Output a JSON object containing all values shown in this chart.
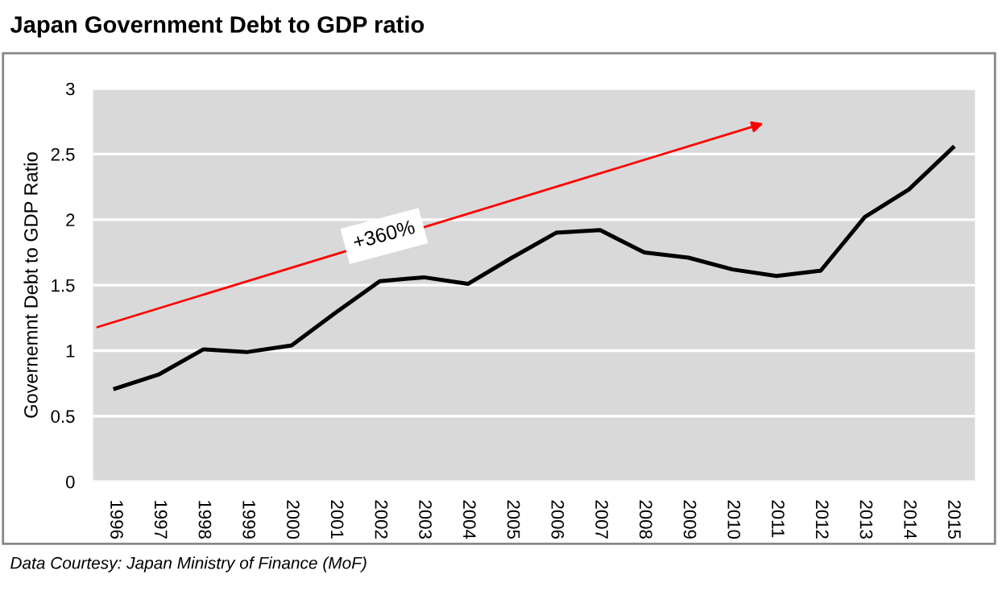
{
  "chart_data": {
    "type": "line",
    "title": "Japan Government Debt to GDP ratio",
    "ylabel": "Governemnt Debt to GDP Ratio",
    "categories": [
      "1996",
      "1997",
      "1998",
      "1999",
      "2000",
      "2001",
      "2002",
      "2003",
      "2004",
      "2005",
      "2006",
      "2007",
      "2008",
      "2009",
      "2010",
      "2011",
      "2012",
      "2013",
      "2014",
      "2015"
    ],
    "series": [
      {
        "color": "#000000",
        "values": [
          0.71,
          0.82,
          1.01,
          0.99,
          1.04,
          1.29,
          1.53,
          1.56,
          1.51,
          1.71,
          1.9,
          1.92,
          1.75,
          1.71,
          1.62,
          1.57,
          1.61,
          2.02,
          2.23,
          2.55
        ]
      }
    ],
    "ylim": [
      0,
      3
    ],
    "yticks": [
      0,
      0.5,
      1,
      1.5,
      2,
      2.5,
      3
    ],
    "grid": "y",
    "marker": "none",
    "line_style": "solid",
    "annotations": [
      "+360%",
      "Data Courtesy: Japan Ministry of Finance (MoF)"
    ]
  }
}
